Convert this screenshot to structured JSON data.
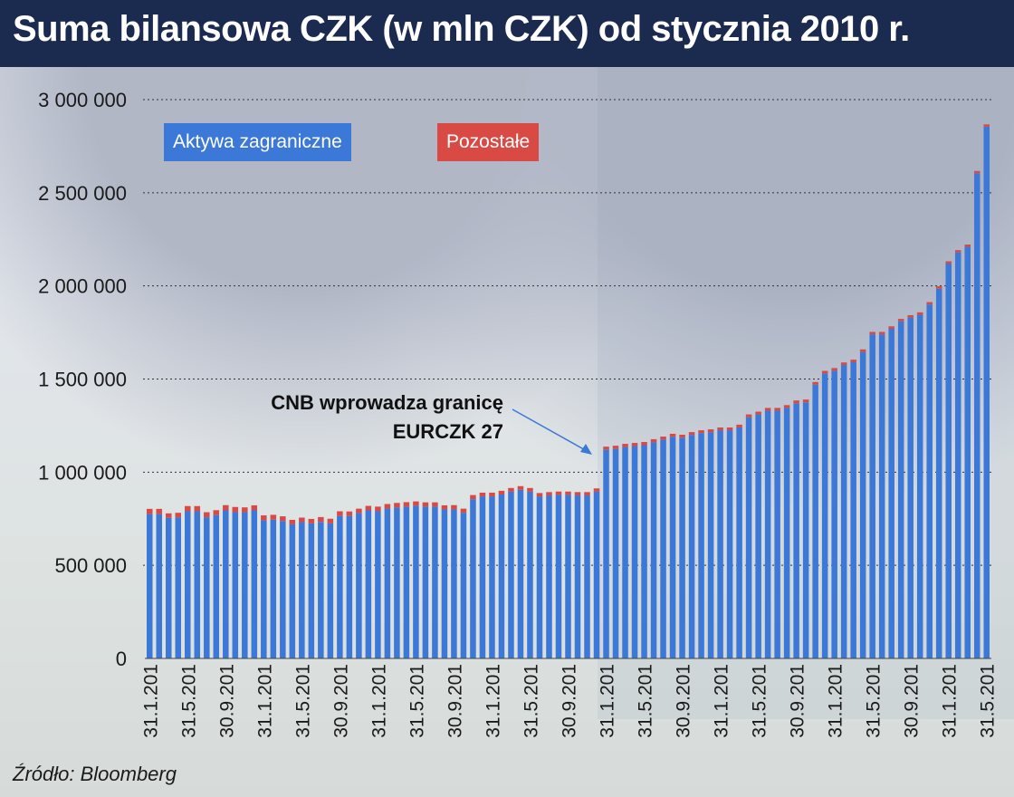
{
  "header": {
    "title": "Suma bilansowa CZK (w mln CZK) od stycznia 2010 r."
  },
  "footer": {
    "source": "Źródło: Bloomberg"
  },
  "annotation": {
    "line1": "CNB wprowadza granicę",
    "line2": "EURCZK 27"
  },
  "colors": {
    "foreign": "#3b78d8",
    "other": "#d94a45",
    "header_bg": "#1b2a4f"
  },
  "chart_data": {
    "type": "bar",
    "stacked": true,
    "title": "Suma bilansowa CZK (w mln CZK) od stycznia 2010 r.",
    "ylim": [
      0,
      3000000
    ],
    "yticks": [
      "0",
      "500 000",
      "1 000 000",
      "1 500 000",
      "2 000 000",
      "2 500 000",
      "3 000 000"
    ],
    "ytick_values": [
      0,
      500000,
      1000000,
      1500000,
      2000000,
      2500000,
      3000000
    ],
    "grid": true,
    "legend_position": "top-left",
    "xtick_labels": [
      "31.1.201",
      "31.5.201",
      "30.9.201",
      "31.1.201",
      "31.5.201",
      "30.9.201",
      "31.1.201",
      "31.5.201",
      "30.9.201",
      "31.1.201",
      "31.5.201",
      "30.9.201",
      "31.1.201",
      "31.5.201",
      "30.9.201",
      "31.1.201",
      "31.5.201",
      "30.9.201",
      "31.1.201",
      "31.5.201",
      "30.9.201",
      "31.1.201",
      "31.5.201",
      "30.9.201",
      "31.1.201"
    ],
    "xtick_every": 4,
    "series": [
      {
        "name": "Aktywa zagraniczne",
        "values": [
          775000,
          775000,
          755000,
          758000,
          790000,
          790000,
          758000,
          770000,
          795000,
          785000,
          785000,
          795000,
          742000,
          745000,
          738000,
          720000,
          732000,
          725000,
          733000,
          725000,
          765000,
          765000,
          780000,
          795000,
          790000,
          805000,
          810000,
          815000,
          820000,
          815000,
          815000,
          800000,
          800000,
          782000,
          855000,
          870000,
          870000,
          880000,
          895000,
          905000,
          895000,
          870000,
          875000,
          878000,
          878000,
          875000,
          875000,
          895000,
          1120000,
          1125000,
          1135000,
          1140000,
          1145000,
          1160000,
          1175000,
          1190000,
          1185000,
          1200000,
          1210000,
          1215000,
          1225000,
          1225000,
          1240000,
          1295000,
          1310000,
          1330000,
          1330000,
          1345000,
          1370000,
          1375000,
          1470000,
          1530000,
          1545000,
          1575000,
          1590000,
          1645000,
          1740000,
          1740000,
          1770000,
          1810000,
          1830000,
          1845000,
          1900000,
          1985000,
          2120000,
          2180000,
          2210000,
          2605000,
          2855000
        ]
      },
      {
        "name": "Pozostałe",
        "values": [
          28000,
          28000,
          24000,
          24000,
          28000,
          28000,
          27000,
          26000,
          28000,
          28000,
          26000,
          27000,
          26000,
          26000,
          25000,
          24000,
          24000,
          24000,
          26000,
          25000,
          25000,
          24000,
          24000,
          24000,
          25000,
          24000,
          25000,
          24000,
          23000,
          23000,
          23000,
          22000,
          23000,
          22000,
          22000,
          20000,
          20000,
          20000,
          20000,
          20000,
          20000,
          18000,
          18000,
          18000,
          18000,
          18000,
          18000,
          18000,
          17000,
          17000,
          17000,
          17000,
          17000,
          17000,
          16000,
          16000,
          16000,
          15000,
          15000,
          15000,
          15000,
          15000,
          15000,
          15000,
          15000,
          15000,
          15000,
          15000,
          15000,
          15000,
          14000,
          14000,
          14000,
          14000,
          14000,
          14000,
          13000,
          13000,
          13000,
          13000,
          13000,
          13000,
          13000,
          13000,
          12000,
          12000,
          12000,
          12000,
          12000
        ]
      }
    ]
  }
}
